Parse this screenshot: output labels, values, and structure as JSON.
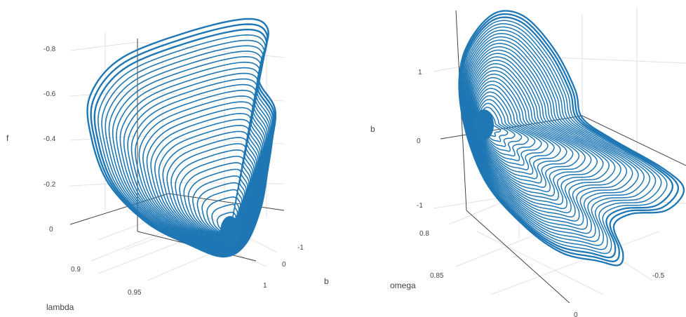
{
  "accent_color": "#1f77b4",
  "chart_data": [
    {
      "type": "line",
      "subtype": "3d-line",
      "title": "",
      "axes": {
        "z": {
          "label": "f",
          "ticks": [
            "-0.8",
            "-0.6",
            "-0.4",
            "-0.2",
            "0"
          ]
        },
        "x": {
          "label": "lambda",
          "ticks": [
            "0.9",
            "0.95"
          ]
        },
        "y": {
          "label": "b",
          "ticks": [
            "-1",
            "0",
            "1"
          ]
        }
      },
      "grid": true,
      "legend": "none",
      "series": [
        {
          "color": "#1f77b4",
          "shape": "spiral trajectory expanding from a focus near f = 0 outward to a limit cycle reaching about f = -0.85"
        }
      ]
    },
    {
      "type": "line",
      "subtype": "3d-line",
      "title": "",
      "axes": {
        "z": {
          "label": "b",
          "ticks": [
            "1",
            "0",
            "-1"
          ]
        },
        "x": {
          "label": "omega",
          "ticks": [
            "0.8",
            "0.85"
          ]
        },
        "y": {
          "label": "",
          "ticks": [
            "-0.5",
            "0"
          ]
        }
      },
      "grid": true,
      "legend": "none",
      "series": [
        {
          "color": "#1f77b4",
          "shape": "spiral trajectory expanding from a focus near b = 0 outward to a limit cycle spanning about b = -1.3 to 1.3"
        }
      ]
    }
  ]
}
